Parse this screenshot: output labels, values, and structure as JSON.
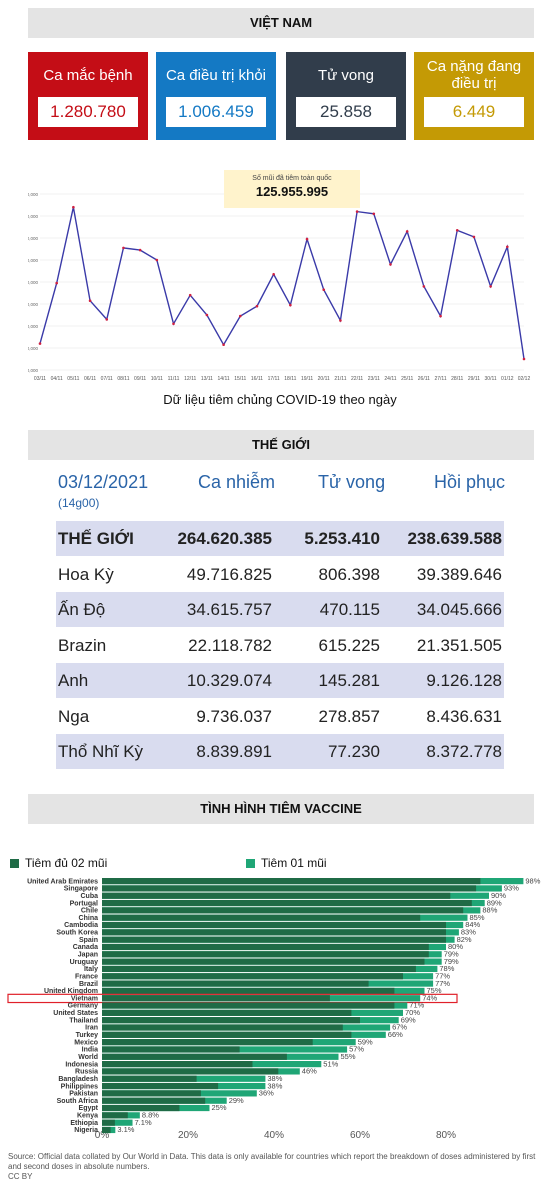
{
  "vietnam": {
    "header": "VIỆT NAM",
    "cards": [
      {
        "label": "Ca mắc bệnh",
        "value": "1.280.780",
        "bg": "#c40d16",
        "fg": "#c40d16"
      },
      {
        "label": "Ca điều trị khỏi",
        "value": "1.006.459",
        "bg": "#1479c4",
        "fg": "#1479c4"
      },
      {
        "label": "Tử vong",
        "value": "25.858",
        "bg": "#313d4b",
        "fg": "#313d4b"
      },
      {
        "label": "Ca nặng đang điều trị",
        "value": "6.449",
        "bg": "#c49a05",
        "fg": "#c49a05"
      }
    ]
  },
  "vaccination_daily": {
    "tooltip_label": "Số mũi đã tiêm toàn quốc",
    "tooltip_value": "125.955.995",
    "caption": "Dữ liệu tiêm chủng COVID-19 theo ngày"
  },
  "world": {
    "header": "THẾ GIỚI",
    "date": "03/12/2021",
    "time": "(14g00)",
    "columns": [
      "Ca nhiễm",
      "Tử vong",
      "Hồi phục"
    ],
    "rows": [
      {
        "name": "THẾ GIỚI",
        "cases": "264.620.385",
        "deaths": "5.253.410",
        "recovered": "238.639.588"
      },
      {
        "name": "Hoa Kỳ",
        "cases": "49.716.825",
        "deaths": "806.398",
        "recovered": "39.389.646"
      },
      {
        "name": "Ấn Độ",
        "cases": "34.615.757",
        "deaths": "470.115",
        "recovered": "34.045.666"
      },
      {
        "name": "Brazin",
        "cases": "22.118.782",
        "deaths": "615.225",
        "recovered": "21.351.505"
      },
      {
        "name": "Anh",
        "cases": "10.329.074",
        "deaths": "145.281",
        "recovered": "9.126.128"
      },
      {
        "name": "Nga",
        "cases": "9.736.037",
        "deaths": "278.857",
        "recovered": "8.436.631"
      },
      {
        "name": "Thổ Nhĩ Kỳ",
        "cases": "8.839.891",
        "deaths": "77.230",
        "recovered": "8.372.778"
      }
    ]
  },
  "vaccine": {
    "header": "TÌNH HÌNH TIÊM VACCINE",
    "legend_full": "Tiêm đủ 02 mũi",
    "legend_one": "Tiêm 01 mũi",
    "source": "Source: Official data collated by Our World in Data. This data is only available for countries which report the breakdown of doses administered by first and second doses in absolute numbers.",
    "license": "CC BY"
  },
  "chart_data": [
    {
      "type": "line",
      "x": [
        "03/11",
        "04/11",
        "05/11",
        "06/11",
        "07/11",
        "08/11",
        "09/11",
        "10/11",
        "11/11",
        "12/11",
        "13/11",
        "14/11",
        "15/11",
        "16/11",
        "17/11",
        "18/11",
        "19/11",
        "20/11",
        "21/11",
        "22/11",
        "23/11",
        "24/11",
        "25/11",
        "26/11",
        "27/11",
        "28/11",
        "29/11",
        "30/11",
        "01/12",
        "02/12"
      ],
      "values": [
        840000,
        1390000,
        2080000,
        1230000,
        1060000,
        1710000,
        1690000,
        1600000,
        1020000,
        1280000,
        1100000,
        830000,
        1090000,
        1180000,
        1470000,
        1190000,
        1790000,
        1330000,
        1050000,
        2040000,
        2020000,
        1560000,
        1860000,
        1360000,
        1090000,
        1870000,
        1810000,
        1360000,
        1720000,
        700000
      ],
      "ylim": [
        600000,
        2200000
      ],
      "yticks": [
        "600,000",
        "800,000",
        "1,000,000",
        "1,200,000",
        "1,400,000",
        "1,600,000",
        "1,800,000",
        "2,000,000",
        "2,200,000"
      ],
      "grid": true,
      "colors": {
        "line": "#3a3aa8",
        "point": "#d02040"
      }
    },
    {
      "type": "bar",
      "orientation": "horizontal",
      "stacked": false,
      "categories": [
        "United Arab Emirates",
        "Singapore",
        "Cuba",
        "Portugal",
        "Chile",
        "China",
        "Cambodia",
        "South Korea",
        "Spain",
        "Canada",
        "Japan",
        "Uruguay",
        "Italy",
        "France",
        "Brazil",
        "United Kingdom",
        "Vietnam",
        "Germany",
        "United States",
        "Thailand",
        "Iran",
        "Turkey",
        "Mexico",
        "India",
        "World",
        "Indonesia",
        "Russia",
        "Bangladesh",
        "Philippines",
        "Pakistan",
        "South Africa",
        "Egypt",
        "Kenya",
        "Ethiopia",
        "Nigeria"
      ],
      "series": [
        {
          "name": "Tiêm đủ 02 mũi",
          "values": [
            88,
            87,
            81,
            86,
            84,
            74,
            80,
            80,
            80,
            76,
            76,
            75,
            73,
            70,
            62,
            68,
            53,
            68,
            58,
            60,
            56,
            58,
            49,
            32,
            43,
            35,
            41,
            22,
            27,
            23,
            24,
            18,
            6,
            3,
            2
          ]
        },
        {
          "name": "Tiêm 01 mũi",
          "values": [
            98,
            93,
            90,
            89,
            88,
            85,
            84,
            83,
            82,
            80,
            79,
            79,
            78,
            77,
            77,
            75,
            74,
            71,
            70,
            69,
            67,
            66,
            59,
            57,
            55,
            51,
            46,
            38,
            38,
            36,
            29,
            25,
            8.8,
            7.1,
            3.1
          ]
        }
      ],
      "data_labels": [
        "98%",
        "93%",
        "90%",
        "89%",
        "88%",
        "85%",
        "84%",
        "83%",
        "82%",
        "80%",
        "79%",
        "79%",
        "78%",
        "77%",
        "77%",
        "75%",
        "74%",
        "71%",
        "70%",
        "69%",
        "67%",
        "66%",
        "59%",
        "57%",
        "55%",
        "51%",
        "46%",
        "38%",
        "38%",
        "36%",
        "29%",
        "25%",
        "8.8%",
        "7.1%",
        "3.1%"
      ],
      "xticks": [
        "0%",
        "20%",
        "40%",
        "60%",
        "80%"
      ],
      "xlim": [
        0,
        100
      ],
      "highlight": "Vietnam",
      "colors": {
        "full": "#1f6b46",
        "one": "#1fa676",
        "highlight": "#e0202a"
      }
    }
  ]
}
